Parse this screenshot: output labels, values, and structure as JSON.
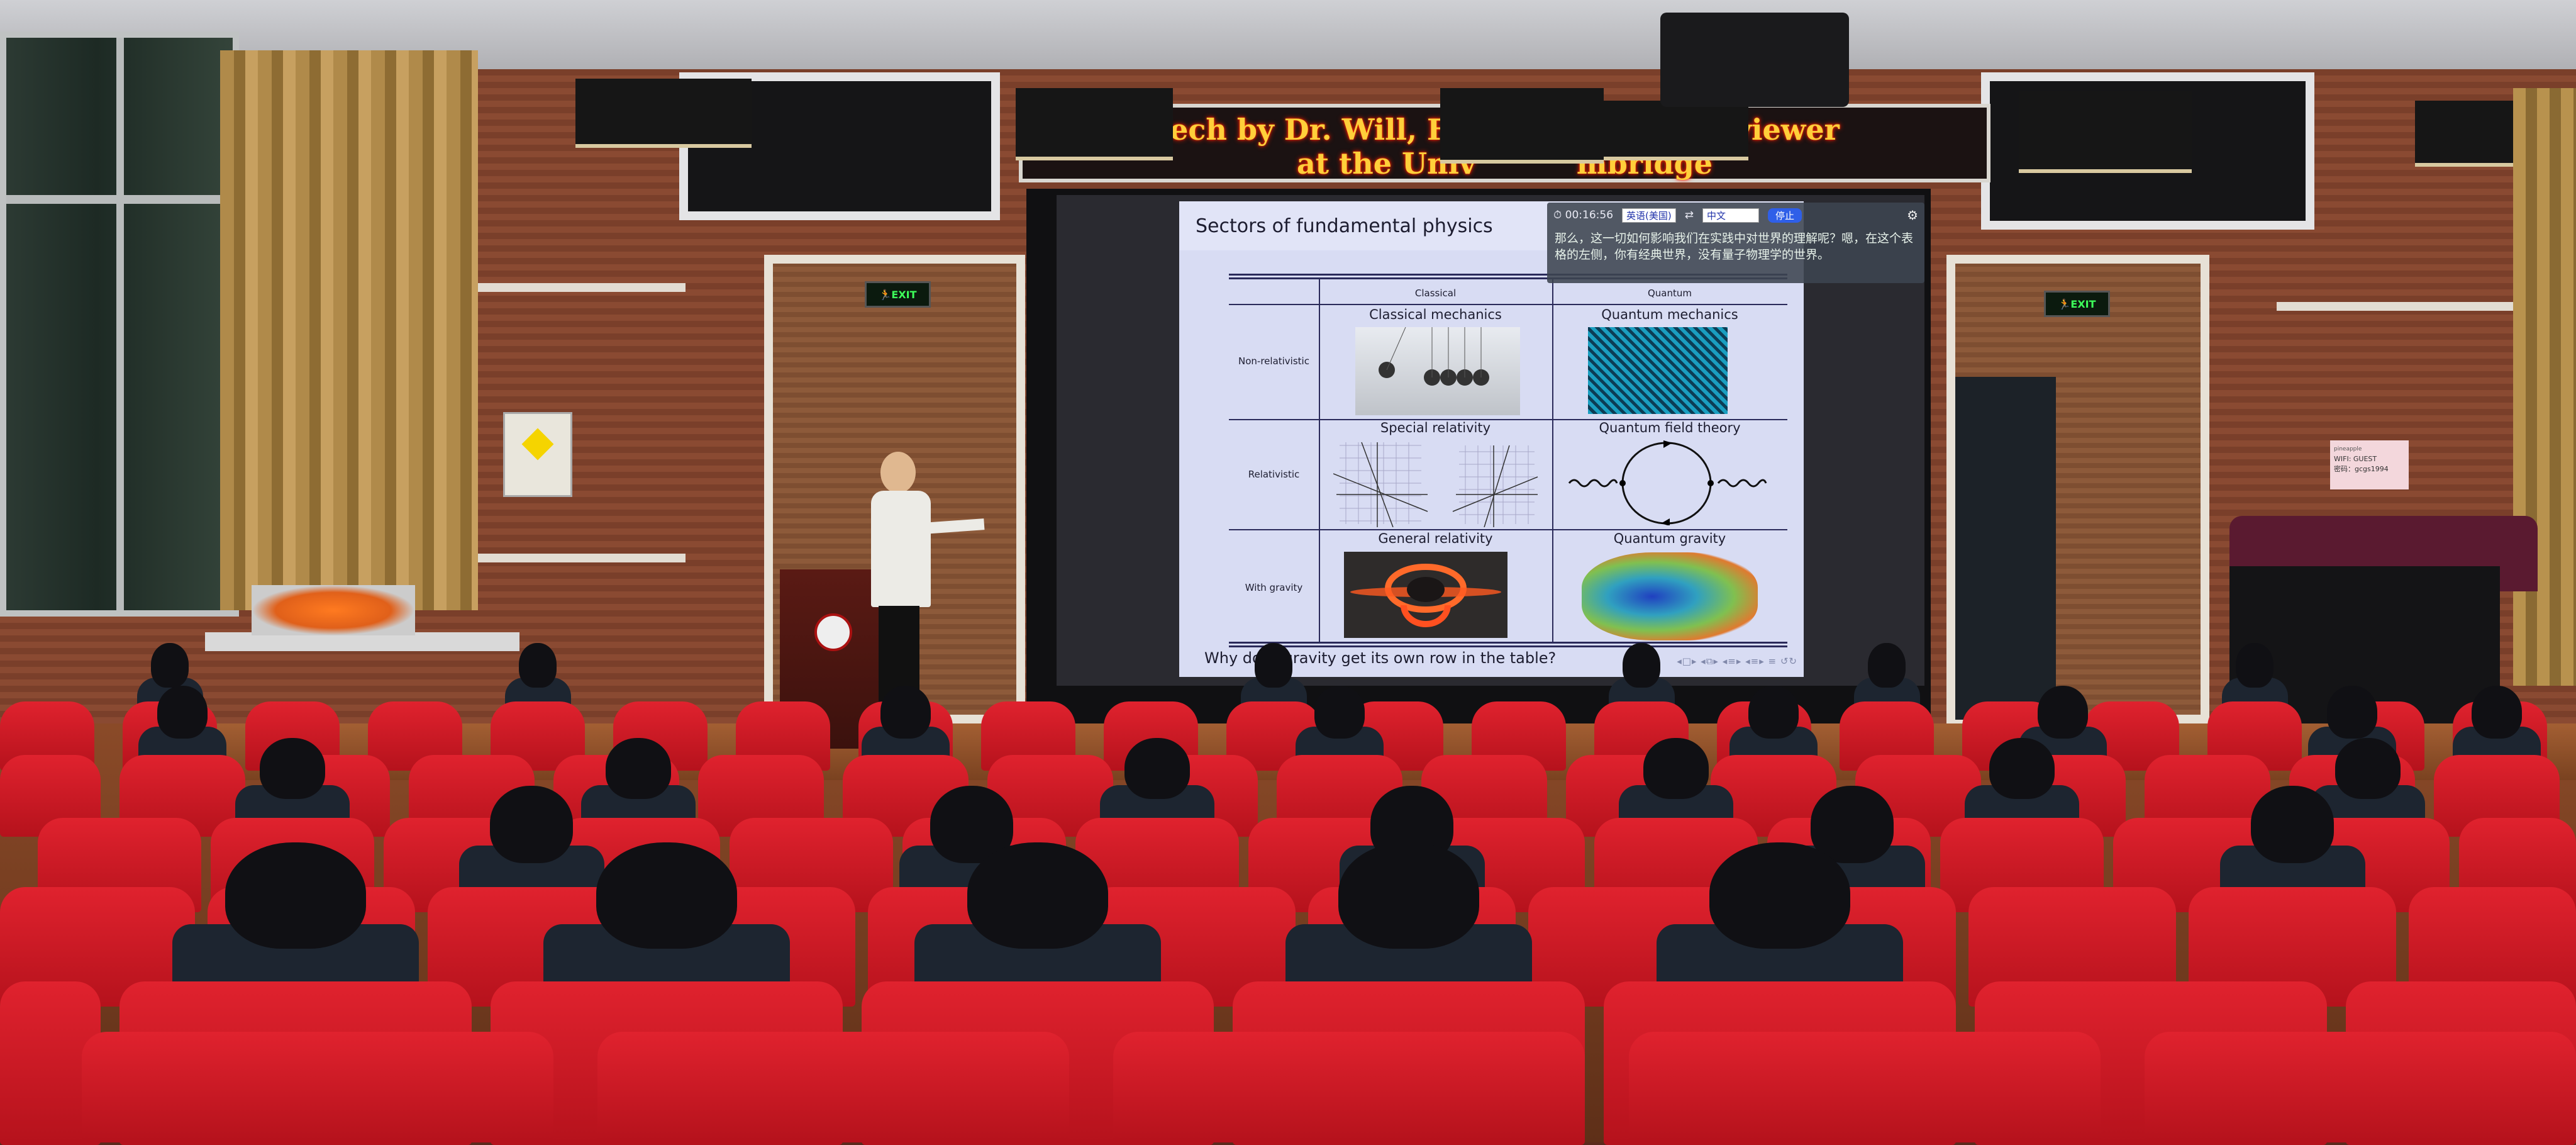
{
  "banner": {
    "line1": "ech by Dr. Will, Form          id Interviewer",
    "line2": "at the Univ          mbridge",
    "color": "#ffcf3a"
  },
  "signs": {
    "exit_left": "EXIT",
    "exit_right": "EXIT",
    "wifi_brand": "pineapple",
    "wifi_name": "WIFI: GUEST",
    "wifi_password": "密码：gcgs1994"
  },
  "slide": {
    "title": "Sectors of fundamental physics",
    "columns": [
      "Classical",
      "Quantum"
    ],
    "rows": [
      {
        "label": "Non-relativistic",
        "classical": "Classical mechanics",
        "quantum": "Quantum mechanics"
      },
      {
        "label": "Relativistic",
        "classical": "Special relativity",
        "quantum": "Quantum field theory"
      },
      {
        "label": "With gravity",
        "classical": "General relativity",
        "quantum": "Quantum gravity"
      }
    ],
    "footer": "Why does gravity get its own row in the table?",
    "nav_icons": "◂□▸ ◂⧉▸ ◂≡▸ ◂≡▸ ≡ ↺↻"
  },
  "subtitle_overlay": {
    "timer": "00:16:56",
    "source_language": "英语(美国)",
    "swap_icon": "⇄",
    "target_language": "中文",
    "stop_label": "停止",
    "text": "那么，这一切如何影响我们在实践中对世界的理解呢？嗯，在这个表格的左侧，你有经典世界，没有量子物理学的世界。",
    "stop_color": "#2f5fe8"
  },
  "colors": {
    "seat": "#d91f2b",
    "wall": "#8a4a32",
    "slide_bg": "#d8dcf3"
  }
}
